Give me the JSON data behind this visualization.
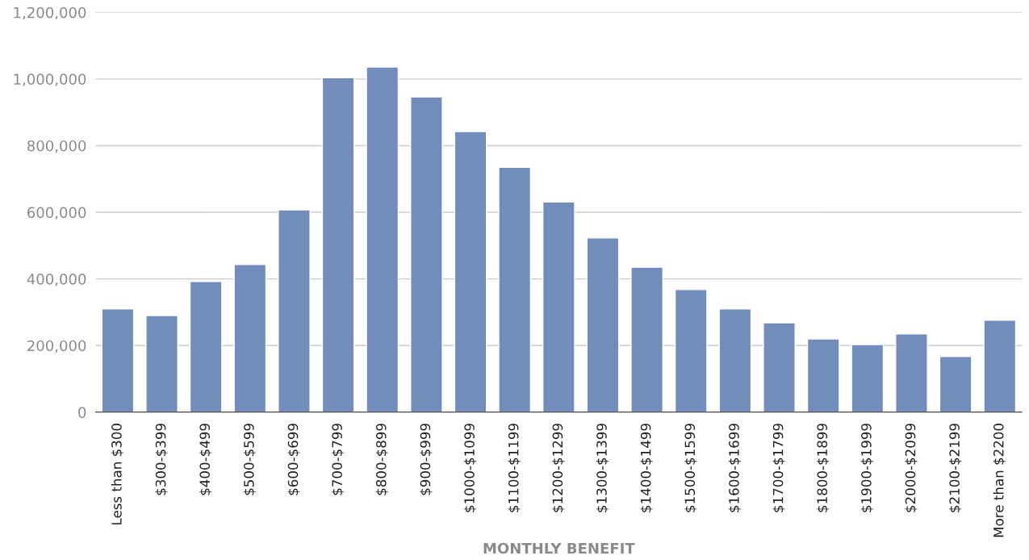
{
  "chart_data": {
    "type": "bar",
    "xlabel": "MONTHLY BENEFIT",
    "categories": [
      "Less than $300",
      "$300-$399",
      "$400-$499",
      "$500-$599",
      "$600-$699",
      "$700-$799",
      "$800-$899",
      "$900-$999",
      "$1000-$1099",
      "$1100-$1199",
      "$1200-$1299",
      "$1300-$1399",
      "$1400-$1499",
      "$1500-$1599",
      "$1600-$1699",
      "$1700-$1799",
      "$1800-$1899",
      "$1900-$1999",
      "$2000-$2099",
      "$2100-$2199",
      "More than $2200"
    ],
    "values": [
      310000,
      290000,
      392000,
      443000,
      607000,
      1004000,
      1036000,
      946000,
      842000,
      735000,
      631000,
      523000,
      435000,
      368000,
      310000,
      268000,
      220000,
      203000,
      235000,
      167000,
      276000
    ],
    "color": "#728cbb",
    "ylim": [
      0,
      1200000
    ],
    "yticks": [
      0,
      {
        "value": 200000,
        "label": "200,000"
      },
      {
        "value": 400000,
        "label": "400,000"
      },
      {
        "value": 600000,
        "label": "600,000"
      },
      {
        "value": 800000,
        "label": "800,000"
      },
      {
        "value": 1000000,
        "label": "1,000,000"
      },
      {
        "value": 1200000,
        "label": "1,200,000"
      }
    ],
    "grid": "y"
  }
}
